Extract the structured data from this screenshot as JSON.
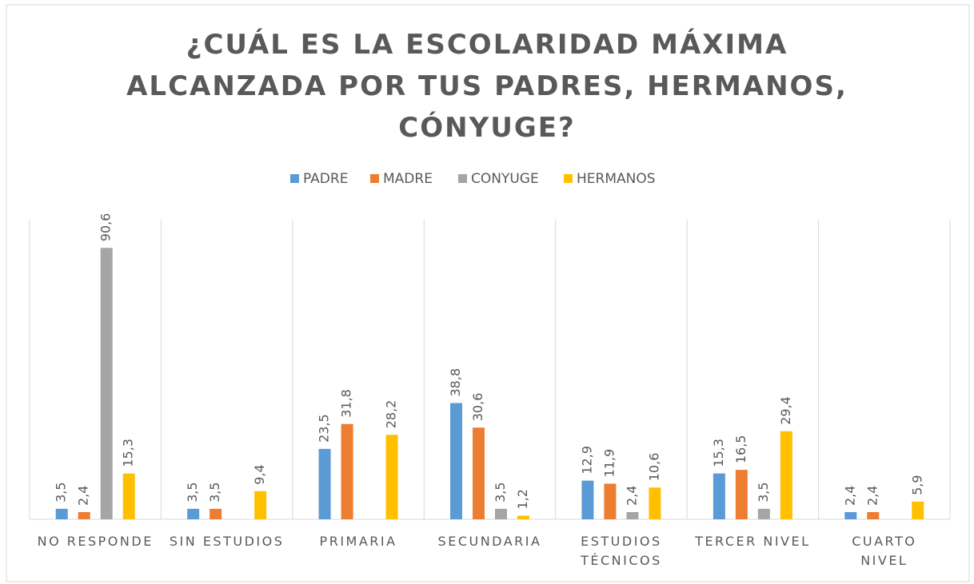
{
  "chart_data": {
    "type": "bar",
    "title": "¿CUÁL ES LA ESCOLARIDAD MÁXIMA ALCANZADA POR  TUS PADRES, HERMANOS, CÓNYUGE?",
    "categories": [
      "NO RESPONDE",
      "SIN ESTUDIOS",
      "PRIMARIA",
      "SECUNDARIA",
      "ESTUDIOS\nTÉCNICOS",
      "TERCER NIVEL",
      "CUARTO\nNIVEL"
    ],
    "series": [
      {
        "name": "PADRE",
        "color": "#5b9bd5",
        "values": [
          3.5,
          3.5,
          23.5,
          38.8,
          12.9,
          15.3,
          2.4
        ],
        "value_labels": [
          "3,5",
          "3,5",
          "23,5",
          "38,8",
          "12,9",
          "15,3",
          "2,4"
        ]
      },
      {
        "name": "MADRE",
        "color": "#ed7d31",
        "values": [
          2.4,
          3.5,
          31.8,
          30.6,
          11.9,
          16.5,
          2.4
        ],
        "value_labels": [
          "2,4",
          "3,5",
          "31,8",
          "30,6",
          "11,9",
          "16,5",
          "2,4"
        ]
      },
      {
        "name": "CONYUGE",
        "color": "#a5a5a5",
        "values": [
          90.6,
          null,
          null,
          3.5,
          2.4,
          3.5,
          null
        ],
        "value_labels": [
          "90,6",
          null,
          null,
          "3,5",
          "2,4",
          "3,5",
          null
        ]
      },
      {
        "name": "HERMANOS",
        "color": "#ffc000",
        "values": [
          15.3,
          9.4,
          28.2,
          1.2,
          10.6,
          29.4,
          5.9
        ],
        "value_labels": [
          "15,3",
          "9,4",
          "28,2",
          "1,2",
          "10,6",
          "29,4",
          "5,9"
        ]
      }
    ],
    "ylim": [
      0,
      100
    ],
    "legend": "top"
  }
}
